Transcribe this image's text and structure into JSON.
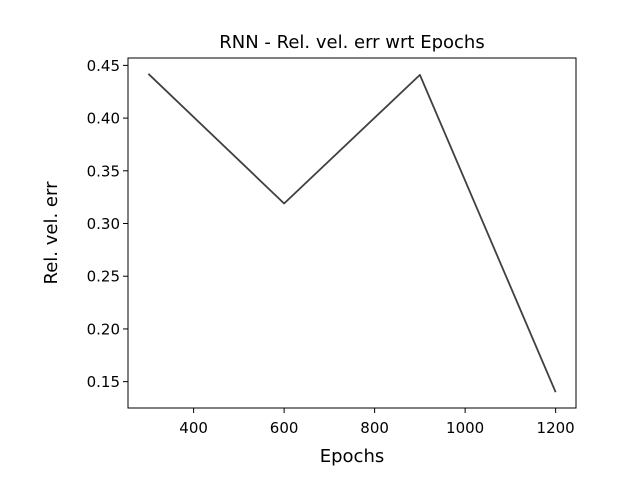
{
  "chart_data": {
    "type": "line",
    "title": "RNN - Rel. vel. err wrt Epochs",
    "xlabel": "Epochs",
    "ylabel": "Rel. vel. err",
    "x": [
      300,
      600,
      900,
      1200
    ],
    "series": [
      {
        "values": [
          0.442,
          0.319,
          0.441,
          0.14
        ]
      }
    ],
    "xlim": [
      255,
      1245
    ],
    "ylim": [
      0.125,
      0.457
    ],
    "xticks": [
      400,
      600,
      800,
      1000,
      1200
    ],
    "xtick_labels": [
      "400",
      "600",
      "800",
      "1000",
      "1200"
    ],
    "yticks": [
      0.15,
      0.2,
      0.25,
      0.3,
      0.35,
      0.4,
      0.45
    ],
    "ytick_labels": [
      "0.15",
      "0.20",
      "0.25",
      "0.30",
      "0.35",
      "0.40",
      "0.45"
    ],
    "grid": false,
    "line_color": "#404040"
  }
}
